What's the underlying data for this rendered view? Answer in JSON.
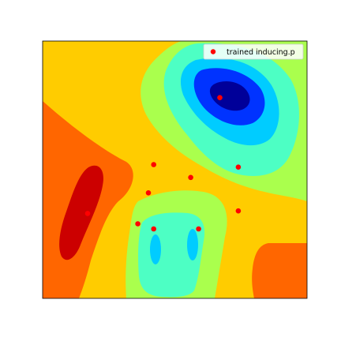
{
  "chart_data": {
    "type": "scatter",
    "background": "filled-contour",
    "colormap": "jet",
    "xlim": [
      0,
      1
    ],
    "ylim": [
      0,
      1
    ],
    "axes_visible": false,
    "grid": false,
    "legend_position": "top-right",
    "series": [
      {
        "name": "trained inducing.p",
        "color": "#ff0000",
        "marker": "circle",
        "points": [
          {
            "x": 0.67,
            "y": 0.78
          },
          {
            "x": 0.42,
            "y": 0.52
          },
          {
            "x": 0.56,
            "y": 0.47
          },
          {
            "x": 0.74,
            "y": 0.51
          },
          {
            "x": 0.4,
            "y": 0.41
          },
          {
            "x": 0.17,
            "y": 0.33
          },
          {
            "x": 0.36,
            "y": 0.29
          },
          {
            "x": 0.42,
            "y": 0.27
          },
          {
            "x": 0.59,
            "y": 0.27
          },
          {
            "x": 0.74,
            "y": 0.34
          }
        ]
      }
    ]
  },
  "colors": {
    "bg": "#ffcc00",
    "orange": "#ff6600",
    "red": "#cc0000",
    "yellow_green": "#aaff4d",
    "aqua": "#4dffc4",
    "cyan": "#00ccff",
    "blue": "#0033ff",
    "dark_blue": "#000099"
  }
}
